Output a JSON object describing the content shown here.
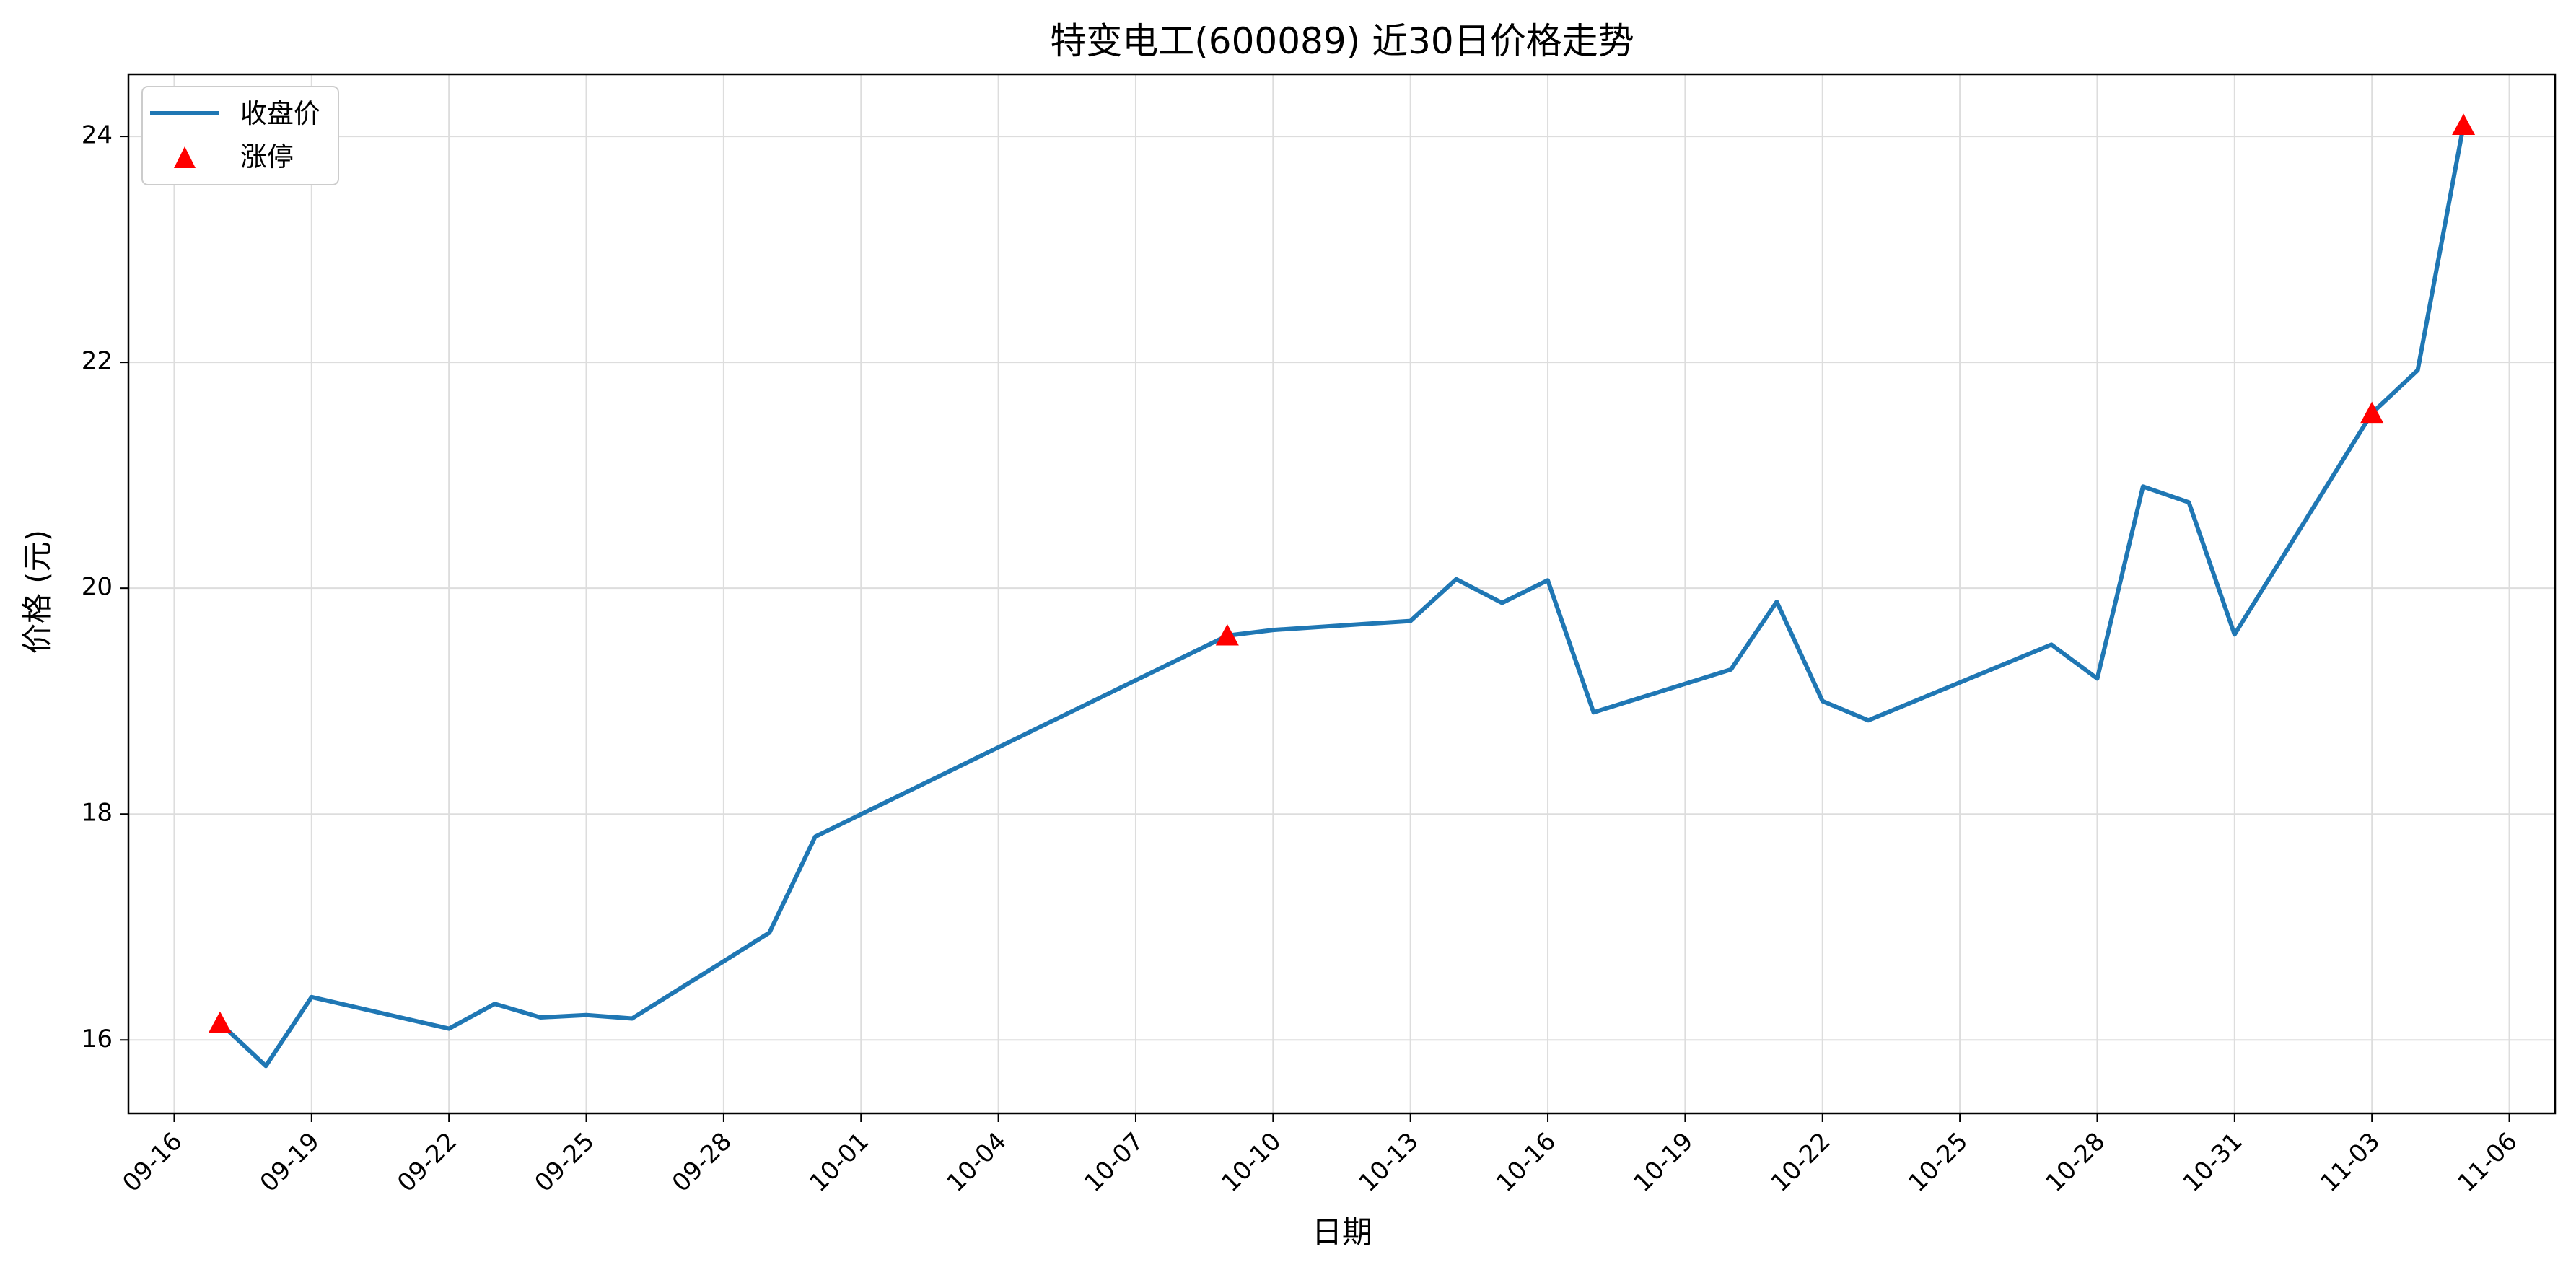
{
  "chart_data": {
    "type": "line",
    "title": "特变电工(600089) 近30日价格走势",
    "xlabel": "日期",
    "ylabel": "价格 (元)",
    "x_axis": {
      "type": "date",
      "min": "2025-09-15",
      "max": "2025-11-07",
      "ticks": [
        {
          "date": "2025-09-16",
          "label": "09-16"
        },
        {
          "date": "2025-09-19",
          "label": "09-19"
        },
        {
          "date": "2025-09-22",
          "label": "09-22"
        },
        {
          "date": "2025-09-25",
          "label": "09-25"
        },
        {
          "date": "2025-09-28",
          "label": "09-28"
        },
        {
          "date": "2025-10-01",
          "label": "10-01"
        },
        {
          "date": "2025-10-04",
          "label": "10-04"
        },
        {
          "date": "2025-10-07",
          "label": "10-07"
        },
        {
          "date": "2025-10-10",
          "label": "10-10"
        },
        {
          "date": "2025-10-13",
          "label": "10-13"
        },
        {
          "date": "2025-10-16",
          "label": "10-16"
        },
        {
          "date": "2025-10-19",
          "label": "10-19"
        },
        {
          "date": "2025-10-22",
          "label": "10-22"
        },
        {
          "date": "2025-10-25",
          "label": "10-25"
        },
        {
          "date": "2025-10-28",
          "label": "10-28"
        },
        {
          "date": "2025-10-31",
          "label": "10-31"
        },
        {
          "date": "2025-11-03",
          "label": "11-03"
        },
        {
          "date": "2025-11-06",
          "label": "11-06"
        }
      ]
    },
    "y_axis": {
      "min": 15.35,
      "max": 24.55,
      "ticks": [
        16,
        18,
        20,
        22,
        24
      ]
    },
    "grid": true,
    "legend_position": "top-left",
    "series": [
      {
        "name": "收盘价",
        "kind": "line",
        "color": "#1f77b4",
        "points": [
          {
            "date": "2025-09-17",
            "value": 16.15
          },
          {
            "date": "2025-09-18",
            "value": 15.77
          },
          {
            "date": "2025-09-19",
            "value": 16.38
          },
          {
            "date": "2025-09-22",
            "value": 16.1
          },
          {
            "date": "2025-09-23",
            "value": 16.32
          },
          {
            "date": "2025-09-24",
            "value": 16.2
          },
          {
            "date": "2025-09-25",
            "value": 16.22
          },
          {
            "date": "2025-09-26",
            "value": 16.19
          },
          {
            "date": "2025-09-29",
            "value": 16.95
          },
          {
            "date": "2025-09-30",
            "value": 17.8
          },
          {
            "date": "2025-10-09",
            "value": 19.58
          },
          {
            "date": "2025-10-10",
            "value": 19.63
          },
          {
            "date": "2025-10-13",
            "value": 19.71
          },
          {
            "date": "2025-10-14",
            "value": 20.08
          },
          {
            "date": "2025-10-15",
            "value": 19.87
          },
          {
            "date": "2025-10-16",
            "value": 20.07
          },
          {
            "date": "2025-10-17",
            "value": 18.9
          },
          {
            "date": "2025-10-20",
            "value": 19.28
          },
          {
            "date": "2025-10-21",
            "value": 19.88
          },
          {
            "date": "2025-10-22",
            "value": 19.0
          },
          {
            "date": "2025-10-23",
            "value": 18.83
          },
          {
            "date": "2025-10-27",
            "value": 19.5
          },
          {
            "date": "2025-10-28",
            "value": 19.2
          },
          {
            "date": "2025-10-29",
            "value": 20.9
          },
          {
            "date": "2025-10-30",
            "value": 20.76
          },
          {
            "date": "2025-10-31",
            "value": 19.59
          },
          {
            "date": "2025-11-03",
            "value": 21.55
          },
          {
            "date": "2025-11-04",
            "value": 21.93
          },
          {
            "date": "2025-11-05",
            "value": 24.1
          }
        ]
      },
      {
        "name": "涨停",
        "kind": "scatter",
        "marker": "triangle",
        "color": "#ff0000",
        "points": [
          {
            "date": "2025-09-17",
            "value": 16.15
          },
          {
            "date": "2025-10-09",
            "value": 19.58
          },
          {
            "date": "2025-11-03",
            "value": 21.55
          },
          {
            "date": "2025-11-05",
            "value": 24.1
          }
        ]
      }
    ]
  }
}
